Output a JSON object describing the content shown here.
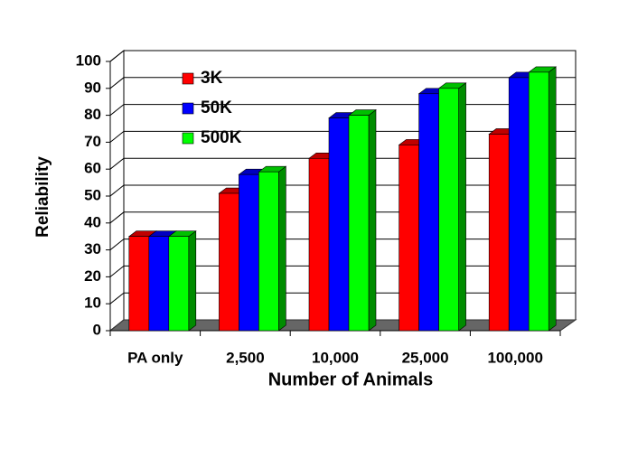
{
  "chart_data": {
    "type": "bar3d",
    "x_label": "Number of Animals",
    "y_label": "Reliability",
    "categories": [
      "PA only",
      "2,500",
      "10,000",
      "25,000",
      "100,000"
    ],
    "series": [
      {
        "name": "3K",
        "color": "#ff0000",
        "values": [
          35,
          51,
          64,
          69,
          73
        ]
      },
      {
        "name": "50K",
        "color": "#0000ff",
        "values": [
          35,
          58,
          79,
          88,
          94
        ]
      },
      {
        "name": "500K",
        "color": "#00ff00",
        "values": [
          35,
          59,
          80,
          90,
          96
        ]
      }
    ],
    "ylim": [
      0,
      100
    ],
    "yticks": [
      0,
      10,
      20,
      30,
      40,
      50,
      60,
      70,
      80,
      90,
      100
    ],
    "grid": true,
    "legend": "upper-left"
  }
}
